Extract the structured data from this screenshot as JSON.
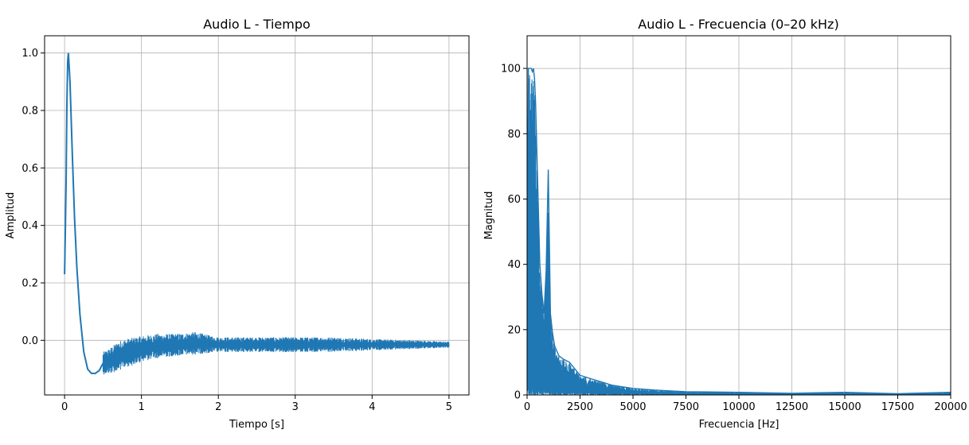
{
  "chart_data": [
    {
      "type": "line",
      "title": "Audio L - Tiempo",
      "xlabel": "Tiempo [s]",
      "ylabel": "Amplitud",
      "xlim": [
        -0.26,
        5.26
      ],
      "ylim": [
        -0.19,
        1.06
      ],
      "xticks": [
        0,
        1,
        2,
        3,
        4,
        5
      ],
      "xtick_labels": [
        "0",
        "1",
        "2",
        "3",
        "4",
        "5"
      ],
      "yticks": [
        0.0,
        0.2,
        0.4,
        0.6,
        0.8,
        1.0
      ],
      "ytick_labels": [
        "0.0",
        "0.2",
        "0.4",
        "0.6",
        "0.8",
        "1.0"
      ],
      "grid": true,
      "color": "#1f77b4",
      "series": [
        {
          "x": [
            0.0,
            0.01,
            0.02,
            0.03,
            0.04,
            0.05,
            0.07,
            0.1,
            0.13,
            0.16,
            0.2,
            0.25,
            0.3,
            0.35,
            0.4,
            0.45,
            0.5,
            0.6,
            0.7,
            0.8,
            1.0,
            1.2,
            1.5,
            1.7,
            2.0,
            2.5,
            3.0,
            3.5,
            4.0,
            4.5,
            5.0
          ],
          "y": [
            0.23,
            0.39,
            0.55,
            0.82,
            0.97,
            1.0,
            0.9,
            0.65,
            0.42,
            0.25,
            0.09,
            -0.04,
            -0.1,
            -0.115,
            -0.115,
            -0.105,
            -0.08,
            -0.07,
            -0.055,
            -0.045,
            -0.03,
            -0.02,
            -0.015,
            -0.01,
            -0.015,
            -0.015,
            -0.015,
            -0.015,
            -0.015,
            -0.015,
            -0.015
          ]
        }
      ],
      "noise_band": {
        "x": [
          0.5,
          0.7,
          1.0,
          1.4,
          1.7,
          2.0,
          2.5,
          3.0,
          3.5,
          4.0,
          4.5,
          5.0
        ],
        "amplitude": [
          0.03,
          0.04,
          0.035,
          0.03,
          0.03,
          0.02,
          0.02,
          0.02,
          0.02,
          0.015,
          0.012,
          0.008
        ]
      }
    },
    {
      "type": "line",
      "title": "Audio L - Frecuencia (0–20 kHz)",
      "xlabel": "Frecuencia [Hz]",
      "ylabel": "Magnitud",
      "xlim": [
        0,
        20000
      ],
      "ylim": [
        0,
        110
      ],
      "xticks": [
        0,
        2500,
        5000,
        7500,
        10000,
        12500,
        15000,
        17500,
        20000
      ],
      "xtick_labels": [
        "0",
        "2500",
        "5000",
        "7500",
        "10000",
        "12500",
        "15000",
        "17500",
        "20000"
      ],
      "yticks": [
        0,
        20,
        40,
        60,
        80,
        100
      ],
      "ytick_labels": [
        "0",
        "20",
        "40",
        "60",
        "80",
        "100"
      ],
      "grid": true,
      "color": "#1f77b4",
      "series": [
        {
          "x": [
            0,
            30,
            60,
            100,
            150,
            200,
            250,
            300,
            350,
            400,
            500,
            600,
            700,
            800,
            900,
            1000,
            1100,
            1200,
            1300,
            1500,
            1700,
            2000,
            2500,
            3000,
            3500,
            4000,
            5000,
            6000,
            7500,
            10000,
            12500,
            15000,
            17500,
            20000
          ],
          "y": [
            20,
            65,
            100,
            100,
            100,
            100,
            99,
            100,
            97,
            90,
            65,
            40,
            31,
            25,
            38,
            69,
            25,
            19,
            15,
            12,
            11,
            10,
            6,
            5,
            4,
            3,
            2,
            1.5,
            1,
            0.8,
            0.5,
            0.8,
            0.4,
            0.8
          ]
        }
      ],
      "noise_floor": [
        {
          "x": 0,
          "y": 5
        },
        {
          "x": 500,
          "y": 3
        },
        {
          "x": 1000,
          "y": 2
        },
        {
          "x": 2000,
          "y": 1.2
        },
        {
          "x": 3000,
          "y": 0.8
        },
        {
          "x": 5000,
          "y": 0.5
        },
        {
          "x": 10000,
          "y": 0.2
        },
        {
          "x": 20000,
          "y": 0.1
        }
      ]
    }
  ]
}
